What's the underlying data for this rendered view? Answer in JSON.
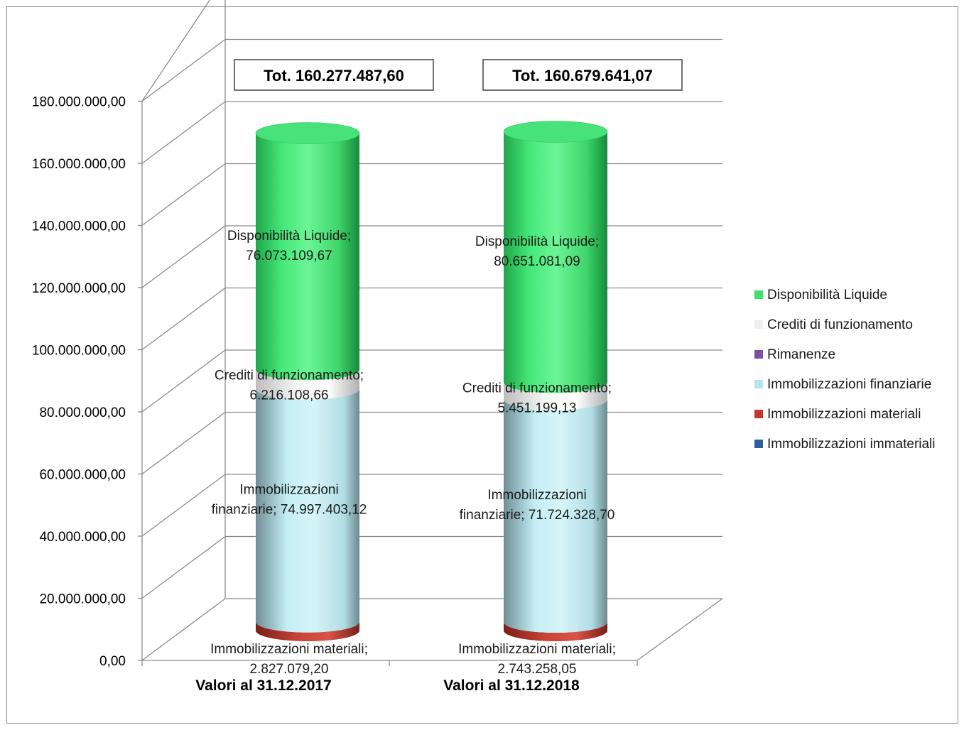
{
  "chart_data": {
    "type": "bar",
    "stacked": true,
    "style": "3d-cylinder",
    "categories": [
      "Valori al 31.12.2017",
      "Valori al 31.12.2018"
    ],
    "totals": [
      "Tot. 160.277.487,60",
      "Tot. 160.679.641,07"
    ],
    "yticks": [
      "0,00",
      "20.000.000,00",
      "40.000.000,00",
      "60.000.000,00",
      "80.000.000,00",
      "100.000.000,00",
      "120.000.000,00",
      "140.000.000,00",
      "160.000.000,00",
      "180.000.000,00"
    ],
    "ylim": [
      0,
      180000000
    ],
    "grid": true,
    "legend_position": "right",
    "series": [
      {
        "name": "Immobilizzazioni immateriali",
        "color": "#2e5fa3",
        "values": [
          0,
          0
        ],
        "labels": [
          "",
          ""
        ]
      },
      {
        "name": "Immobilizzazioni materiali",
        "color": "#c0392b",
        "values": [
          2827079.2,
          2743258.05
        ],
        "labels": [
          [
            "Immobilizzazioni materiali;",
            "2.827.079,20"
          ],
          [
            "Immobilizzazioni materiali;",
            "2.743.258,05"
          ]
        ]
      },
      {
        "name": "Immobilizzazioni finanziarie",
        "color": "#b7e3ea",
        "values": [
          74997403.12,
          71724328.7
        ],
        "labels": [
          [
            "Immobilizzazioni",
            "finanziarie; 74.997.403,12"
          ],
          [
            "Immobilizzazioni",
            "finanziarie; 71.724.328,70"
          ]
        ]
      },
      {
        "name": "Rimanenze",
        "color": "#7a4fa3",
        "values": [
          0,
          0
        ],
        "labels": [
          "",
          ""
        ]
      },
      {
        "name": "Crediti di funzionamento",
        "color": "#eeeeee",
        "values": [
          6216108.66,
          5451199.13
        ],
        "labels": [
          [
            "Crediti di funzionamento;",
            "6.216.108,66"
          ],
          [
            "Crediti di funzionamento;",
            "5.451.199,13"
          ]
        ]
      },
      {
        "name": "Disponibilità Liquide",
        "color": "#3ee06c",
        "values": [
          76073109.67,
          80651081.09
        ],
        "labels": [
          [
            "Disponibilità Liquide;",
            "76.073.109,67"
          ],
          [
            "Disponibilità Liquide;",
            "80.651.081,09"
          ]
        ]
      }
    ],
    "legend_order": [
      "Disponibilità Liquide",
      "Crediti di funzionamento",
      "Rimanenze",
      "Immobilizzazioni finanziarie",
      "Immobilizzazioni materiali",
      "Immobilizzazioni immateriali"
    ]
  }
}
